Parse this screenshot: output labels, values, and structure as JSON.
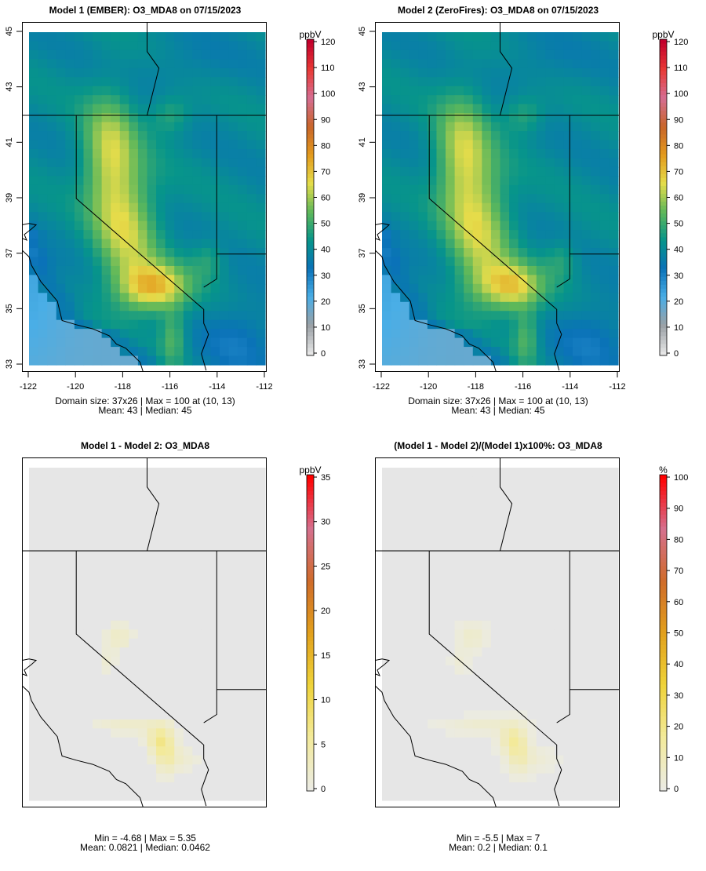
{
  "panels": [
    {
      "title": "Model 1 (EMBER): O3_MDA8 on 07/15/2023",
      "unit": "ppbV",
      "kind": "ozone",
      "cb_max": 120,
      "cb_ticks": [
        0,
        10,
        20,
        30,
        40,
        50,
        60,
        70,
        80,
        90,
        100,
        110,
        120
      ],
      "show_axes": true,
      "stats_line1": "Domain size: 37x26 | Max = 100 at (10, 13)",
      "stats_line2": "Mean: 43 |  Median: 45"
    },
    {
      "title": "Model 2 (ZeroFires): O3_MDA8 on 07/15/2023",
      "unit": "ppbV",
      "kind": "ozone2",
      "cb_max": 120,
      "cb_ticks": [
        0,
        10,
        20,
        30,
        40,
        50,
        60,
        70,
        80,
        90,
        100,
        110,
        120
      ],
      "show_axes": true,
      "stats_line1": "Domain size: 37x26 | Max = 100 at (10, 13)",
      "stats_line2": "Mean: 43 |  Median: 45"
    },
    {
      "title": "Model 1 - Model 2: O3_MDA8",
      "unit": "ppbV",
      "kind": "diff",
      "cb_max": 35,
      "cb_ticks": [
        0,
        5,
        10,
        15,
        20,
        25,
        30,
        35
      ],
      "show_axes": false,
      "stats_line1": "Min = -4.68 | Max = 5.35",
      "stats_line2": "Mean: 0.0821 |  Median: 0.0462"
    },
    {
      "title": "(Model 1 - Model 2)/(Model 1)x100%: O3_MDA8",
      "unit": "%",
      "kind": "pct",
      "cb_max": 100,
      "cb_ticks": [
        0,
        10,
        20,
        30,
        40,
        50,
        60,
        70,
        80,
        90,
        100
      ],
      "show_axes": false,
      "stats_line1": "Min = -5.5 | Max = 7",
      "stats_line2": "Mean: 0.2 |  Median: 0.1"
    }
  ],
  "axes": {
    "x_ticks": [
      "-122",
      "-120",
      "-118",
      "-116",
      "-114",
      "-112"
    ],
    "y_ticks": [
      "33",
      "35",
      "37",
      "39",
      "41",
      "43",
      "45"
    ],
    "lon_range": [
      -122,
      -112
    ],
    "lat_range": [
      33,
      45
    ]
  },
  "colors": {
    "ozone_ramp": [
      "#e6e6e6",
      "#9aa0a5",
      "#4aaee6",
      "#0a72b8",
      "#07958a",
      "#5fb85a",
      "#e5dc4a",
      "#e39a1d",
      "#c8652a",
      "#d56e92",
      "#e83a36",
      "#c2002c"
    ],
    "diff_ramp": [
      "#ebebe4",
      "#f3ea9a",
      "#efd33a",
      "#e2a01c",
      "#cf6b2a",
      "#d5708e",
      "#ff0000"
    ],
    "background": "#e6e6e6"
  }
}
